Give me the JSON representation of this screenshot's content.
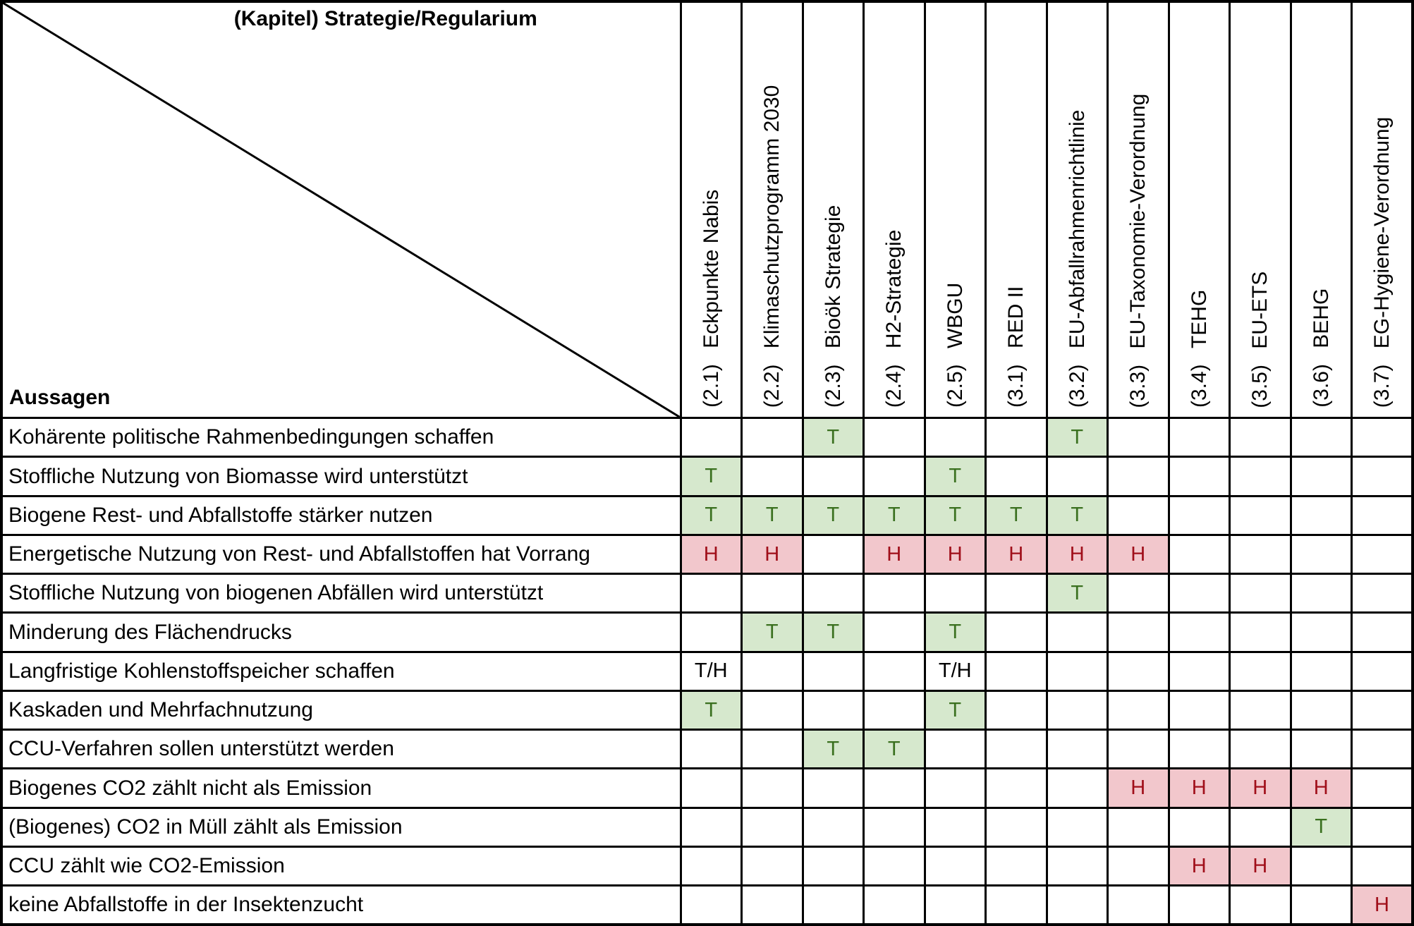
{
  "colors": {
    "grid": "#000000",
    "background": "#ffffff",
    "positive_bg": "#d6e8cd",
    "positive_text": "#3a701f",
    "negative_bg": "#f2c7cc",
    "negative_text": "#a00f1a"
  },
  "chart_data": {
    "type": "table",
    "corner": {
      "column_axis_title": "(Kapitel) Strategie/Regularium",
      "row_axis_title": "Aussagen"
    },
    "mark_values": [
      "T",
      "H",
      "T/H"
    ],
    "columns": [
      {
        "code": "(2.1)",
        "name": "Eckpunkte Nabis"
      },
      {
        "code": "(2.2)",
        "name": "Klimaschutzprogramm 2030"
      },
      {
        "code": "(2.3)",
        "name": "Bioök Strategie"
      },
      {
        "code": "(2.4)",
        "name": "H2-Strategie"
      },
      {
        "code": "(2.5)",
        "name": "WBGU"
      },
      {
        "code": "(3.1)",
        "name": "RED II"
      },
      {
        "code": "(3.2)",
        "name": "EU-Abfallrahmenrichtlinie"
      },
      {
        "code": "(3.3)",
        "name": "EU-Taxonomie-Verordnung"
      },
      {
        "code": "(3.4)",
        "name": "TEHG"
      },
      {
        "code": "(3.5)",
        "name": "EU-ETS"
      },
      {
        "code": "(3.6)",
        "name": "BEHG"
      },
      {
        "code": "(3.7)",
        "name": "EG-Hygiene-Verordnung"
      }
    ],
    "rows": [
      {
        "label": "Kohärente politische Rahmenbedingungen schaffen",
        "cells": [
          "",
          "",
          "T",
          "",
          "",
          "",
          "T",
          "",
          "",
          "",
          "",
          ""
        ]
      },
      {
        "label": "Stoffliche Nutzung von Biomasse wird unterstützt",
        "cells": [
          "T",
          "",
          "",
          "",
          "T",
          "",
          "",
          "",
          "",
          "",
          "",
          ""
        ]
      },
      {
        "label": "Biogene Rest- und Abfallstoffe stärker nutzen",
        "cells": [
          "T",
          "T",
          "T",
          "T",
          "T",
          "T",
          "T",
          "",
          "",
          "",
          "",
          ""
        ]
      },
      {
        "label": "Energetische Nutzung von Rest- und Abfallstoffen hat Vorrang",
        "cells": [
          "H",
          "H",
          "",
          "H",
          "H",
          "H",
          "H",
          "H",
          "",
          "",
          "",
          ""
        ]
      },
      {
        "label": "Stoffliche Nutzung von biogenen Abfällen wird unterstützt",
        "cells": [
          "",
          "",
          "",
          "",
          "",
          "",
          "T",
          "",
          "",
          "",
          "",
          ""
        ]
      },
      {
        "label": "Minderung des Flächendrucks",
        "cells": [
          "",
          "T",
          "T",
          "",
          "T",
          "",
          "",
          "",
          "",
          "",
          "",
          ""
        ]
      },
      {
        "label": "Langfristige Kohlenstoffspeicher schaffen",
        "cells": [
          "T/H",
          "",
          "",
          "",
          "T/H",
          "",
          "",
          "",
          "",
          "",
          "",
          ""
        ]
      },
      {
        "label": "Kaskaden und Mehrfachnutzung",
        "cells": [
          "T",
          "",
          "",
          "",
          "T",
          "",
          "",
          "",
          "",
          "",
          "",
          ""
        ]
      },
      {
        "label": "CCU-Verfahren sollen unterstützt werden",
        "cells": [
          "",
          "",
          "T",
          "T",
          "",
          "",
          "",
          "",
          "",
          "",
          "",
          ""
        ]
      },
      {
        "label": "Biogenes CO2 zählt nicht als Emission",
        "cells": [
          "",
          "",
          "",
          "",
          "",
          "",
          "",
          "H",
          "H",
          "H",
          "H",
          ""
        ]
      },
      {
        "label": "(Biogenes) CO2 in Müll zählt als Emission",
        "cells": [
          "",
          "",
          "",
          "",
          "",
          "",
          "",
          "",
          "",
          "",
          "T",
          ""
        ]
      },
      {
        "label": "CCU zählt wie CO2-Emission",
        "cells": [
          "",
          "",
          "",
          "",
          "",
          "",
          "",
          "",
          "H",
          "H",
          "",
          ""
        ]
      },
      {
        "label": "keine Abfallstoffe in der Insektenzucht",
        "cells": [
          "",
          "",
          "",
          "",
          "",
          "",
          "",
          "",
          "",
          "",
          "",
          "H"
        ]
      }
    ]
  }
}
